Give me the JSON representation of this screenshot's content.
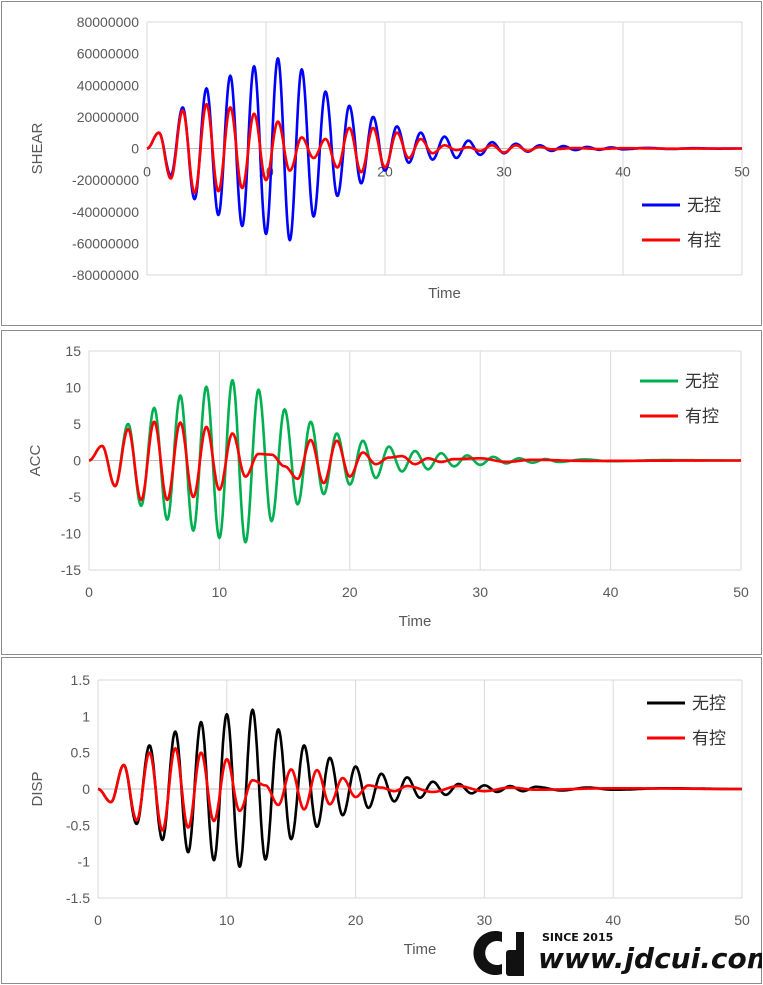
{
  "chart_data": [
    {
      "type": "line",
      "ylabel": "SHEAR",
      "xlabel": "Time",
      "xlim": [
        0,
        50
      ],
      "ylim": [
        -80000000,
        80000000
      ],
      "xticks": [
        "0",
        "10",
        "20",
        "30",
        "40",
        "50"
      ],
      "yticks": [
        "80000000",
        "60000000",
        "40000000",
        "20000000",
        "0",
        "-20000000",
        "-40000000",
        "-60000000",
        "-80000000"
      ],
      "ytick_values": [
        80000000,
        60000000,
        40000000,
        20000000,
        0,
        -20000000,
        -40000000,
        -60000000,
        -80000000
      ],
      "grid": "vertical",
      "legend_position": "right",
      "series": [
        {
          "name": "无控",
          "color": "#0000ff",
          "peaks": [
            [
              1,
              10000000
            ],
            [
              2,
              -17000000
            ],
            [
              3,
              26000000
            ],
            [
              4,
              -32000000
            ],
            [
              5,
              38000000
            ],
            [
              6,
              -42000000
            ],
            [
              7,
              46000000
            ],
            [
              8,
              -49000000
            ],
            [
              9,
              52000000
            ],
            [
              10,
              -54000000
            ],
            [
              11,
              57000000
            ],
            [
              12,
              -58000000
            ],
            [
              13,
              50000000
            ],
            [
              14,
              -43000000
            ],
            [
              15,
              36000000
            ],
            [
              16,
              -30000000
            ],
            [
              17,
              27000000
            ],
            [
              18,
              -22000000
            ],
            [
              19,
              20000000
            ],
            [
              20,
              -14000000
            ],
            [
              21,
              14000000
            ],
            [
              22,
              -9000000
            ],
            [
              23,
              10000000
            ],
            [
              24,
              -7000000
            ],
            [
              25,
              7500000
            ],
            [
              26,
              -6000000
            ],
            [
              27,
              5000000
            ],
            [
              28,
              -4000000
            ],
            [
              29,
              4000000
            ],
            [
              30,
              -3000000
            ],
            [
              31,
              3000000
            ],
            [
              32,
              -2000000
            ],
            [
              33,
              2000000
            ],
            [
              34,
              -1500000
            ],
            [
              35,
              1500000
            ],
            [
              36,
              -1000000
            ],
            [
              37,
              1000000
            ],
            [
              38,
              -800000
            ],
            [
              39,
              700000
            ],
            [
              40,
              -500000
            ],
            [
              42,
              400000
            ],
            [
              44,
              -300000
            ],
            [
              46,
              200000
            ],
            [
              48,
              -100000
            ],
            [
              50,
              0
            ]
          ]
        },
        {
          "name": "有控",
          "color": "#ff0000",
          "peaks": [
            [
              1,
              10000000
            ],
            [
              2,
              -19000000
            ],
            [
              3,
              24000000
            ],
            [
              4,
              -28000000
            ],
            [
              5,
              28000000
            ],
            [
              6,
              -27000000
            ],
            [
              7,
              26000000
            ],
            [
              8,
              -25000000
            ],
            [
              9,
              22000000
            ],
            [
              10,
              -20000000
            ],
            [
              11,
              17000000
            ],
            [
              12,
              -14000000
            ],
            [
              13,
              7000000
            ],
            [
              14,
              -6000000
            ],
            [
              15,
              6000000
            ],
            [
              16,
              -12000000
            ],
            [
              17,
              13000000
            ],
            [
              18,
              -15000000
            ],
            [
              19,
              13000000
            ],
            [
              20,
              -12000000
            ],
            [
              21,
              10000000
            ],
            [
              22,
              -6000000
            ],
            [
              23,
              6000000
            ],
            [
              24,
              -3000000
            ],
            [
              25,
              2000000
            ],
            [
              26,
              -1000000
            ],
            [
              27,
              800000
            ],
            [
              28,
              -1500000
            ],
            [
              29,
              2000000
            ],
            [
              30,
              -2500000
            ],
            [
              31,
              2000000
            ],
            [
              32,
              -1500000
            ],
            [
              33,
              1000000
            ],
            [
              34,
              -500000
            ],
            [
              36,
              300000
            ],
            [
              38,
              -300000
            ],
            [
              40,
              200000
            ],
            [
              44,
              -100000
            ],
            [
              50,
              0
            ]
          ]
        }
      ]
    },
    {
      "type": "line",
      "ylabel": "ACC",
      "xlabel": "Time",
      "xlim": [
        0,
        50
      ],
      "ylim": [
        -15,
        15
      ],
      "xticks": [
        "0",
        "10",
        "20",
        "30",
        "40",
        "50"
      ],
      "yticks": [
        "15",
        "10",
        "5",
        "0",
        "-5",
        "-10",
        "-15"
      ],
      "ytick_values": [
        15,
        10,
        5,
        0,
        -5,
        -10,
        -15
      ],
      "grid": "vertical",
      "legend_position": "top-right",
      "series": [
        {
          "name": "无控",
          "color": "#00b050",
          "peaks": [
            [
              1,
              2
            ],
            [
              2,
              -3.5
            ],
            [
              3,
              5
            ],
            [
              4,
              -6.2
            ],
            [
              5,
              7.2
            ],
            [
              6,
              -8.1
            ],
            [
              7,
              8.9
            ],
            [
              8,
              -9.6
            ],
            [
              9,
              10.1
            ],
            [
              10,
              -10.6
            ],
            [
              11,
              11
            ],
            [
              12,
              -11.2
            ],
            [
              13,
              9.7
            ],
            [
              14,
              -8.3
            ],
            [
              15,
              7
            ],
            [
              16,
              -6
            ],
            [
              17,
              5.3
            ],
            [
              18,
              -4.6
            ],
            [
              19,
              3.7
            ],
            [
              20,
              -3.3
            ],
            [
              21,
              2.7
            ],
            [
              22,
              -2.4
            ],
            [
              23,
              1.9
            ],
            [
              24,
              -1.5
            ],
            [
              25,
              1.3
            ],
            [
              26,
              -1.2
            ],
            [
              27,
              1
            ],
            [
              28,
              -0.8
            ],
            [
              29,
              0.7
            ],
            [
              30,
              -0.6
            ],
            [
              31,
              0.5
            ],
            [
              32,
              -0.4
            ],
            [
              33,
              0.3
            ],
            [
              34,
              -0.3
            ],
            [
              35,
              0.2
            ],
            [
              36,
              -0.2
            ],
            [
              38,
              0.15
            ],
            [
              40,
              -0.1
            ],
            [
              44,
              0.05
            ],
            [
              50,
              0
            ]
          ]
        },
        {
          "name": "有控",
          "color": "#ff0000",
          "peaks": [
            [
              1,
              2
            ],
            [
              2,
              -3.5
            ],
            [
              3,
              4.3
            ],
            [
              4,
              -5.4
            ],
            [
              5,
              5.3
            ],
            [
              6,
              -5.4
            ],
            [
              7,
              5.2
            ],
            [
              8,
              -5
            ],
            [
              9,
              4.6
            ],
            [
              10,
              -4
            ],
            [
              11,
              3.7
            ],
            [
              12,
              -2.2
            ],
            [
              13,
              0.9
            ],
            [
              14,
              0.8
            ],
            [
              15,
              -0.8
            ],
            [
              16,
              -2.5
            ],
            [
              17,
              2.8
            ],
            [
              18,
              -3.1
            ],
            [
              19,
              2.7
            ],
            [
              20,
              -2.2
            ],
            [
              21,
              1.1
            ],
            [
              22,
              -0.5
            ],
            [
              23,
              0.4
            ],
            [
              24,
              0.6
            ],
            [
              25,
              -0.5
            ],
            [
              26,
              0.3
            ],
            [
              27,
              -0.2
            ],
            [
              28,
              0.2
            ],
            [
              30,
              0.3
            ],
            [
              32,
              -0.2
            ],
            [
              34,
              0.1
            ],
            [
              38,
              -0.05
            ],
            [
              50,
              0
            ]
          ]
        }
      ]
    },
    {
      "type": "line",
      "ylabel": "DISP",
      "xlabel": "Time",
      "xlim": [
        0,
        50
      ],
      "ylim": [
        -1.5,
        1.5
      ],
      "xticks": [
        "0",
        "10",
        "20",
        "30",
        "40",
        "50"
      ],
      "yticks": [
        "1.5",
        "1",
        "0.5",
        "0",
        "-0.5",
        "-1",
        "-1.5"
      ],
      "ytick_values": [
        1.5,
        1,
        0.5,
        0,
        -0.5,
        -1,
        -1.5
      ],
      "grid": "vertical",
      "legend_position": "top-right",
      "series": [
        {
          "name": "无控",
          "color": "#000000",
          "peaks": [
            [
              1,
              -0.18
            ],
            [
              2,
              0.33
            ],
            [
              3,
              -0.48
            ],
            [
              4,
              0.6
            ],
            [
              5,
              -0.7
            ],
            [
              6,
              0.79
            ],
            [
              7,
              -0.87
            ],
            [
              8,
              0.92
            ],
            [
              9,
              -0.98
            ],
            [
              10,
              1.03
            ],
            [
              11,
              -1.07
            ],
            [
              12,
              1.09
            ],
            [
              13,
              -0.97
            ],
            [
              14,
              0.82
            ],
            [
              15,
              -0.69
            ],
            [
              16,
              0.6
            ],
            [
              17,
              -0.52
            ],
            [
              18,
              0.43
            ],
            [
              19,
              -0.36
            ],
            [
              20,
              0.31
            ],
            [
              21,
              -0.26
            ],
            [
              22,
              0.21
            ],
            [
              23,
              -0.17
            ],
            [
              24,
              0.16
            ],
            [
              25,
              -0.12
            ],
            [
              26,
              0.1
            ],
            [
              27,
              -0.08
            ],
            [
              28,
              0.07
            ],
            [
              29,
              -0.06
            ],
            [
              30,
              0.05
            ],
            [
              31,
              -0.04
            ],
            [
              32,
              0.04
            ],
            [
              33,
              -0.03
            ],
            [
              34,
              0.03
            ],
            [
              36,
              -0.02
            ],
            [
              38,
              0.02
            ],
            [
              40,
              -0.01
            ],
            [
              44,
              0.01
            ],
            [
              50,
              0
            ]
          ]
        },
        {
          "name": "有控",
          "color": "#ff0000",
          "peaks": [
            [
              1,
              -0.18
            ],
            [
              2,
              0.33
            ],
            [
              3,
              -0.43
            ],
            [
              4,
              0.5
            ],
            [
              5,
              -0.57
            ],
            [
              6,
              0.56
            ],
            [
              7,
              -0.53
            ],
            [
              8,
              0.5
            ],
            [
              9,
              -0.44
            ],
            [
              10,
              0.41
            ],
            [
              11,
              -0.3
            ],
            [
              12,
              0.12
            ],
            [
              13,
              0.05
            ],
            [
              14,
              -0.22
            ],
            [
              15,
              0.27
            ],
            [
              16,
              -0.28
            ],
            [
              17,
              0.26
            ],
            [
              18,
              -0.21
            ],
            [
              19,
              0.15
            ],
            [
              20,
              -0.11
            ],
            [
              21,
              0.05
            ],
            [
              22,
              0.02
            ],
            [
              23,
              -0.03
            ],
            [
              24,
              0.04
            ],
            [
              26,
              -0.04
            ],
            [
              28,
              0.04
            ],
            [
              30,
              -0.03
            ],
            [
              32,
              0.02
            ],
            [
              34,
              -0.01
            ],
            [
              40,
              0.01
            ],
            [
              50,
              0
            ]
          ]
        }
      ]
    }
  ],
  "watermark": {
    "logo_text": "CD",
    "since": "SINCE 2015",
    "url": "www.jdcui.com"
  }
}
